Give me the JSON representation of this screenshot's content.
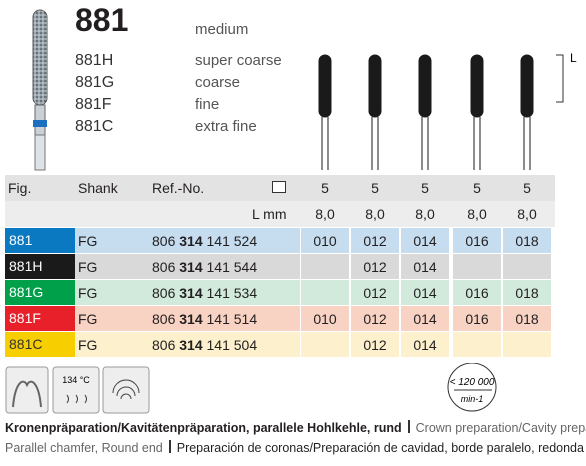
{
  "header": {
    "model": "881",
    "grit": "medium",
    "variants": [
      {
        "code": "881H",
        "grit": "super coarse"
      },
      {
        "code": "881G",
        "grit": "coarse"
      },
      {
        "code": "881F",
        "grit": "fine"
      },
      {
        "code": "881C",
        "grit": "extra fine"
      }
    ],
    "length_label": "L"
  },
  "table": {
    "columns": [
      "Fig.",
      "Shank",
      "Ref.-No."
    ],
    "packs": [
      "5",
      "5",
      "5",
      "5",
      "5"
    ],
    "length_label": "L mm",
    "lengths": [
      "8,0",
      "8,0",
      "8,0",
      "8,0",
      "8,0"
    ],
    "rows": [
      {
        "fig": "881",
        "color": "#0b78c2",
        "bg": "#c6dcef",
        "shank": "FG",
        "ref": [
          "806",
          "314",
          "141 524"
        ],
        "sizes": [
          "010",
          "012",
          "014",
          "016",
          "018"
        ]
      },
      {
        "fig": "881H",
        "color": "#1a1a1a",
        "bg": "#d9d9d9",
        "shank": "FG",
        "ref": [
          "806",
          "314",
          "141 544"
        ],
        "sizes": [
          null,
          "012",
          "014",
          null,
          null
        ]
      },
      {
        "fig": "881G",
        "color": "#00a04a",
        "bg": "#d2eadb",
        "shank": "FG",
        "ref": [
          "806",
          "314",
          "141 534"
        ],
        "sizes": [
          null,
          "012",
          "014",
          "016",
          "018"
        ]
      },
      {
        "fig": "881F",
        "color": "#e8202a",
        "bg": "#f8d3c4",
        "shank": "FG",
        "ref": [
          "806",
          "314",
          "141 514"
        ],
        "sizes": [
          "010",
          "012",
          "014",
          "016",
          "018"
        ]
      },
      {
        "fig": "881C",
        "color": "#f7cf00",
        "bg": "#fcf0cd",
        "shank": "FG",
        "ref": [
          "806",
          "314",
          "141 504"
        ],
        "sizes": [
          null,
          "012",
          "014",
          null,
          null
        ]
      }
    ]
  },
  "icons": {
    "sterilization": "134 °C",
    "speed": "< 120 000",
    "speed_unit": "min-1"
  },
  "footer": {
    "de": "Kronenpräparation/Kavitätenpräparation, parallele Hohlkehle, rund",
    "en_1": "Crown preparation/Cavity preparation",
    "en_2": "Parallel chamfer, Round end",
    "es": "Preparación de coronas/Preparación de cavidad, borde paralelo, redonda"
  }
}
